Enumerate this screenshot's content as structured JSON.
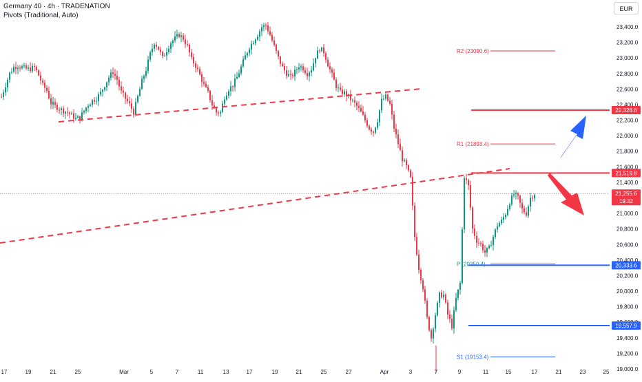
{
  "header": {
    "title": "Germany 40 · 4h · TRADENATION",
    "indicator": "Pivots (Traditional, Auto)",
    "currency": "EUR"
  },
  "chart_data": {
    "type": "candlestick",
    "symbol": "Germany 40",
    "timeframe": "4h",
    "y_ticks": [
      19000,
      19200,
      19400,
      19600,
      19800,
      20000,
      20200,
      20400,
      20600,
      20800,
      21000,
      21200,
      21400,
      21600,
      21800,
      22000,
      22200,
      22400,
      22600,
      22800,
      23000,
      23200,
      23400
    ],
    "y_tick_labels": [
      "19,000.0",
      "19,200.0",
      "19,400.0",
      "19,600.0",
      "19,800.0",
      "20,000.0",
      "20,200.0",
      "20,400.0",
      "20,600.0",
      "20,800.0",
      "21,000.0",
      "21,200.0",
      "21,400.0",
      "21,600.0",
      "21,800.0",
      "22,000.0",
      "22,200.0",
      "22,400.0",
      "22,600.0",
      "22,800.0",
      "23,000.0",
      "23,200.0",
      "23,400.0"
    ],
    "ylim": [
      18900,
      23600
    ],
    "x_tick_labels": [
      "17",
      "19",
      "21",
      "25",
      "Mar",
      "5",
      "7",
      "11",
      "13",
      "17",
      "19",
      "21",
      "25",
      "27",
      "Apr",
      "3",
      "7",
      "9",
      "11",
      "15",
      "17",
      "21",
      "23",
      "25"
    ],
    "pivots": [
      {
        "label": "R2 (23090.6)",
        "value": 23090.6
      },
      {
        "label": "R1 (21893.4)",
        "value": 21893.4
      },
      {
        "label": "P (20350.4)",
        "value": 20350.4
      },
      {
        "label": "S1 (19153.4)",
        "value": 19153.4
      }
    ],
    "levels": [
      {
        "label": "22,328.8",
        "value": 22328.8,
        "color": "#f23645"
      },
      {
        "label": "21,519.8",
        "value": 21519.8,
        "color": "#f23645"
      },
      {
        "label": "20,333.6",
        "value": 20333.6,
        "color": "#2962ff"
      },
      {
        "label": "19,557.9",
        "value": 19557.9,
        "color": "#2962ff"
      }
    ],
    "last_price": {
      "label": "21,255.6",
      "countdown": "19:32",
      "value": 21255.6,
      "color": "#f23645"
    },
    "close_path": [
      [
        0,
        22500
      ],
      [
        2,
        22650
      ],
      [
        4,
        22800
      ],
      [
        6,
        22880
      ],
      [
        8,
        22900
      ],
      [
        10,
        22880
      ],
      [
        12,
        22860
      ],
      [
        14,
        22860
      ],
      [
        16,
        22880
      ],
      [
        18,
        22780
      ],
      [
        20,
        22650
      ],
      [
        22,
        22580
      ],
      [
        24,
        22420
      ],
      [
        26,
        22380
      ],
      [
        28,
        22350
      ],
      [
        30,
        22320
      ],
      [
        32,
        22300
      ],
      [
        34,
        22260
      ],
      [
        36,
        22220
      ],
      [
        38,
        22230
      ],
      [
        40,
        22320
      ],
      [
        42,
        22400
      ],
      [
        44,
        22450
      ],
      [
        46,
        22480
      ],
      [
        48,
        22550
      ],
      [
        50,
        22650
      ],
      [
        52,
        22750
      ],
      [
        54,
        22820
      ],
      [
        56,
        22720
      ],
      [
        58,
        22560
      ],
      [
        60,
        22480
      ],
      [
        62,
        22400
      ],
      [
        64,
        22300
      ],
      [
        66,
        22500
      ],
      [
        68,
        22700
      ],
      [
        70,
        22850
      ],
      [
        72,
        23050
      ],
      [
        74,
        23200
      ],
      [
        76,
        23120
      ],
      [
        78,
        23000
      ],
      [
        80,
        23100
      ],
      [
        82,
        23200
      ],
      [
        84,
        23250
      ],
      [
        86,
        23300
      ],
      [
        88,
        23250
      ],
      [
        90,
        23150
      ],
      [
        92,
        22980
      ],
      [
        94,
        22900
      ],
      [
        96,
        22780
      ],
      [
        98,
        22650
      ],
      [
        100,
        22550
      ],
      [
        102,
        22400
      ],
      [
        104,
        22300
      ],
      [
        106,
        22300
      ],
      [
        108,
        22500
      ],
      [
        110,
        22600
      ],
      [
        112,
        22650
      ],
      [
        114,
        22750
      ],
      [
        116,
        22880
      ],
      [
        118,
        23020
      ],
      [
        120,
        23140
      ],
      [
        122,
        23220
      ],
      [
        124,
        23300
      ],
      [
        126,
        23400
      ],
      [
        128,
        23420
      ],
      [
        130,
        23300
      ],
      [
        132,
        23150
      ],
      [
        134,
        23000
      ],
      [
        136,
        22880
      ],
      [
        138,
        22800
      ],
      [
        140,
        22750
      ],
      [
        142,
        22820
      ],
      [
        144,
        22900
      ],
      [
        146,
        22870
      ],
      [
        148,
        22800
      ],
      [
        150,
        22860
      ],
      [
        152,
        23020
      ],
      [
        154,
        23120
      ],
      [
        156,
        23080
      ],
      [
        158,
        22920
      ],
      [
        160,
        22780
      ],
      [
        162,
        22640
      ],
      [
        164,
        22560
      ],
      [
        166,
        22550
      ],
      [
        168,
        22500
      ],
      [
        170,
        22440
      ],
      [
        172,
        22380
      ],
      [
        174,
        22300
      ],
      [
        176,
        22200
      ],
      [
        178,
        22100
      ],
      [
        180,
        22050
      ],
      [
        182,
        22200
      ],
      [
        184,
        22450
      ],
      [
        186,
        22500
      ],
      [
        188,
        22400
      ],
      [
        190,
        22100
      ],
      [
        192,
        21900
      ],
      [
        194,
        21700
      ],
      [
        196,
        21600
      ],
      [
        198,
        21450
      ],
      [
        200,
        20700
      ],
      [
        202,
        20300
      ],
      [
        204,
        20050
      ],
      [
        206,
        19650
      ],
      [
        208,
        19400
      ],
      [
        210,
        19700
      ],
      [
        212,
        19950
      ],
      [
        214,
        19950
      ],
      [
        216,
        19700
      ],
      [
        218,
        19550
      ],
      [
        220,
        19900
      ],
      [
        222,
        20100
      ],
      [
        224,
        21480
      ],
      [
        226,
        21350
      ],
      [
        228,
        20800
      ],
      [
        230,
        20650
      ],
      [
        232,
        20600
      ],
      [
        234,
        20500
      ],
      [
        236,
        20550
      ],
      [
        238,
        20700
      ],
      [
        240,
        20850
      ],
      [
        242,
        20900
      ],
      [
        244,
        21000
      ],
      [
        246,
        21150
      ],
      [
        248,
        21250
      ],
      [
        250,
        21200
      ],
      [
        252,
        21050
      ],
      [
        254,
        21000
      ],
      [
        256,
        21200
      ],
      [
        258,
        21255.6
      ]
    ],
    "x_domain": [
      0,
      340
    ],
    "grid": false,
    "annotations": [
      "trend lines (dashed)",
      "up arrow",
      "down arrow"
    ]
  }
}
